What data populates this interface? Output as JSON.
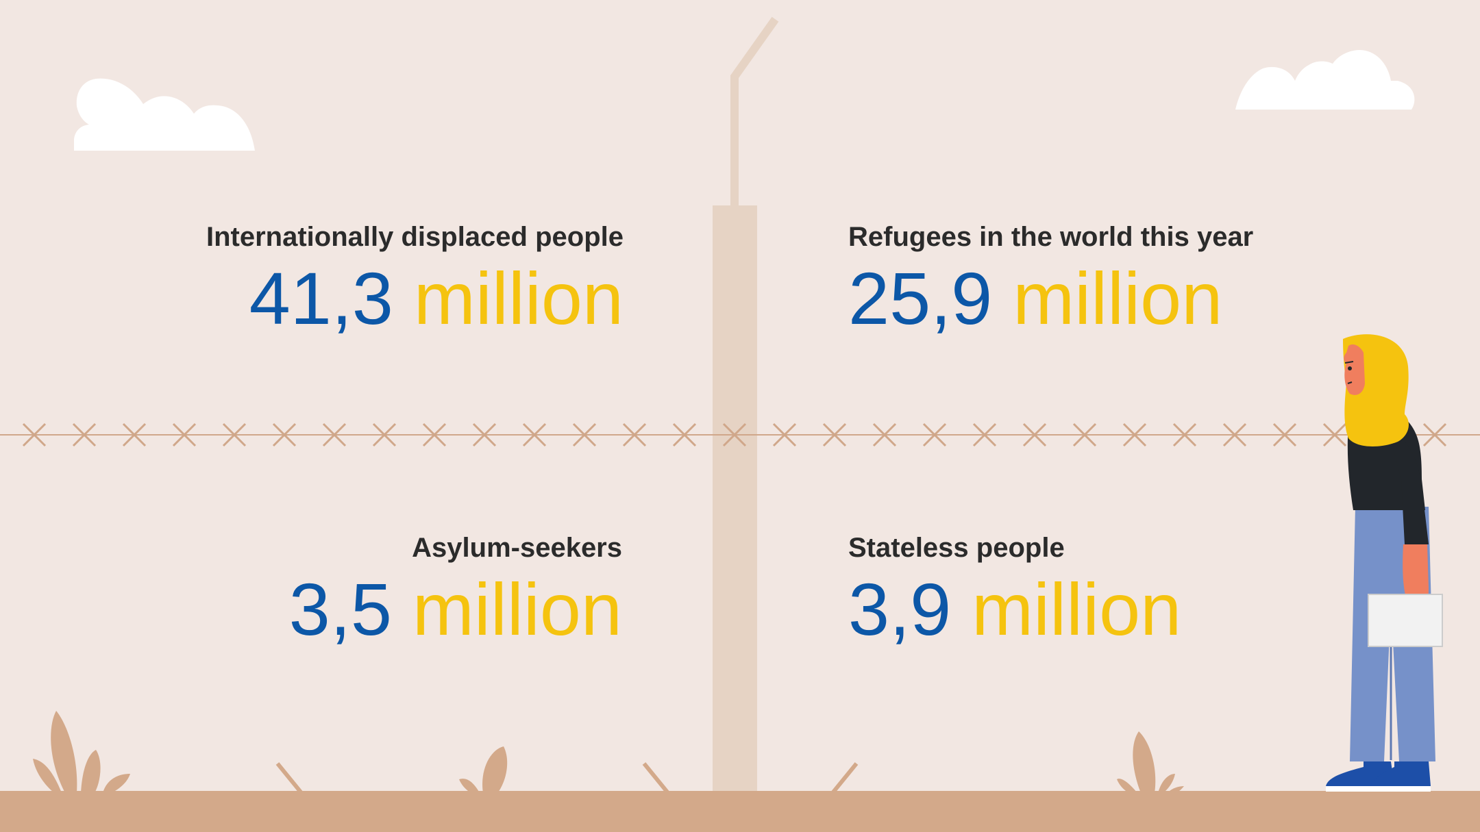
{
  "stats": [
    {
      "label": "Internationally displaced people",
      "number": "41,3",
      "unit": "million"
    },
    {
      "label": "Refugees in the world this year",
      "number": "25,9",
      "unit": "million"
    },
    {
      "label": "Asylum-seekers",
      "number": "3,5",
      "unit": "million"
    },
    {
      "label": "Stateless people",
      "number": "3,9",
      "unit": "million"
    }
  ],
  "colors": {
    "background": "#f2e7e2",
    "ground": "#d3a98a",
    "number": "#0c57a7",
    "unit": "#f5c30f",
    "label": "#2b2b2b",
    "wire": "#d0a78a",
    "post": "#e6d3c4"
  },
  "illustration": {
    "icons": [
      "cloud-icon",
      "fence-post-icon",
      "barbed-wire-icon",
      "plant-icon",
      "refugee-woman-figure"
    ]
  }
}
